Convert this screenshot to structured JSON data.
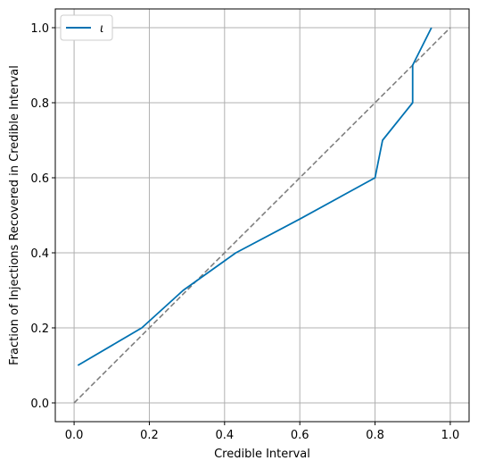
{
  "chart_data": {
    "type": "line",
    "xlabel": "Credible Interval",
    "ylabel": "Fraction of Injections Recovered in Credible Interval",
    "xlim": [
      -0.05,
      1.05
    ],
    "ylim": [
      -0.05,
      1.05
    ],
    "xticks": [
      "0.0",
      "0.2",
      "0.4",
      "0.6",
      "0.8",
      "1.0"
    ],
    "yticks": [
      "0.0",
      "0.2",
      "0.4",
      "0.6",
      "0.8",
      "1.0"
    ],
    "grid": true,
    "legend_position": "upper-left",
    "series": [
      {
        "name": "ι",
        "color": "#0072b2",
        "x": [
          0.01,
          0.18,
          0.29,
          0.43,
          0.6,
          0.8,
          0.82,
          0.9,
          0.9,
          0.95
        ],
        "y": [
          0.1,
          0.2,
          0.3,
          0.4,
          0.49,
          0.6,
          0.7,
          0.8,
          0.9,
          1.0
        ]
      }
    ],
    "reference_line": {
      "color": "#7f7f7f",
      "style": "dashed",
      "x": [
        0.0,
        1.0
      ],
      "y": [
        0.0,
        1.0
      ]
    }
  }
}
